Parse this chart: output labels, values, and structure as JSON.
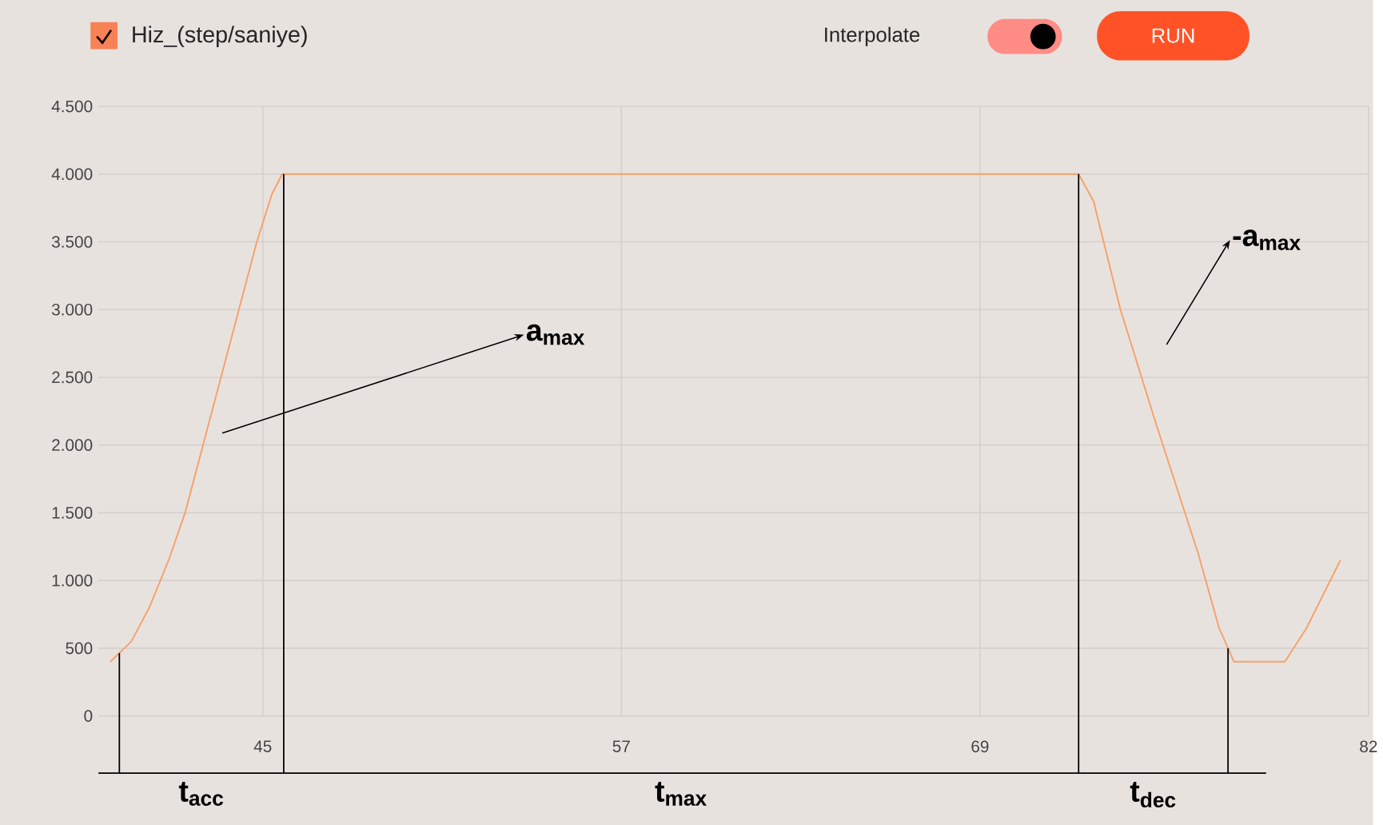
{
  "chart_data": {
    "type": "line",
    "x": [
      39.9,
      40.6,
      41.2,
      41.85,
      42.4,
      43.0,
      43.6,
      44.2,
      44.8,
      45.3,
      45.65,
      72.3,
      72.8,
      73.7,
      74.9,
      76.3,
      77.0,
      77.5,
      79.2,
      79.93,
      81.06
    ],
    "series": [
      {
        "name": "Hiz_(step/saniye)",
        "color": "#f5a26b",
        "values": [
          400,
          550,
          800,
          1150,
          1500,
          2000,
          2500,
          3000,
          3500,
          3850,
          4000,
          4000,
          3800,
          3000,
          2150,
          1200,
          650,
          400,
          400,
          650,
          1150
        ]
      }
    ],
    "xlim": [
      39.5,
      82
    ],
    "xticks": [
      45,
      57,
      69,
      82
    ],
    "ylim": [
      0,
      4500
    ],
    "yticks": [
      0,
      500,
      {
        "value": 1000,
        "label": "1.000"
      },
      {
        "value": 1500,
        "label": "1.500"
      },
      {
        "value": 2000,
        "label": "2.000"
      },
      {
        "value": 2500,
        "label": "2.500"
      },
      {
        "value": 3000,
        "label": "3.000"
      },
      {
        "value": 3500,
        "label": "3.500"
      },
      {
        "value": 4000,
        "label": "4.000"
      },
      {
        "value": 4500,
        "label": "4.500"
      }
    ],
    "grid": true,
    "legend": "top left",
    "marker": "none",
    "line_style": "solid",
    "ref_lines": [
      {
        "axis": "x",
        "value": 40.2,
        "color": "#000000"
      },
      {
        "axis": "x",
        "value": 45.7,
        "color": "#000000"
      },
      {
        "axis": "x",
        "value": 72.3,
        "color": "#000000"
      },
      {
        "axis": "x",
        "value": 77.3,
        "color": "#000000"
      }
    ],
    "annotations": [
      "a$_{max}$",
      "-a$_{max}$",
      "t$_{acc}$",
      "t$_{max}$",
      "t$_{dec}$",
      "Interpolate",
      "RUN"
    ]
  }
}
